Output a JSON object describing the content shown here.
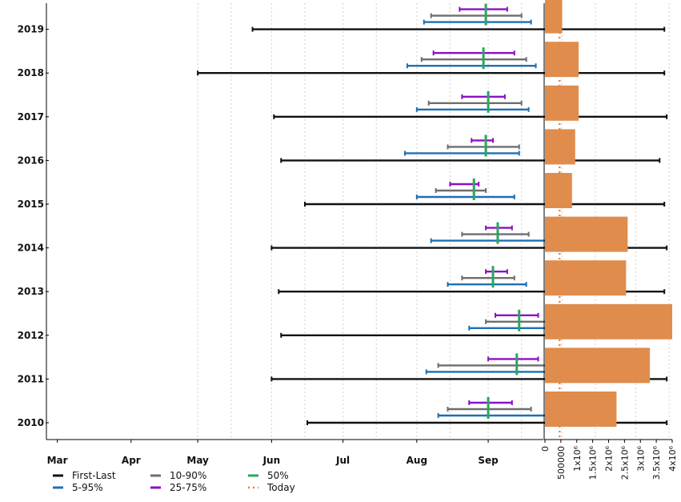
{
  "chart_data": [
    {
      "type": "range",
      "categories": [
        "2010",
        "2011",
        "2012",
        "2013",
        "2014",
        "2015",
        "2016",
        "2017",
        "2018",
        "2019"
      ],
      "x_ticks": [
        "Mar",
        "Apr",
        "May",
        "Jun",
        "Jul",
        "Aug",
        "Sep"
      ],
      "today": "Jul 31",
      "series": [
        {
          "name": "First-Last",
          "color": "#111111",
          "ranges": [
            [
              "Apr 16",
              "Sep 14"
            ],
            [
              "Apr 1",
              "Sep 14"
            ],
            [
              "Apr 5",
              "Sep 15"
            ],
            [
              "Apr 4",
              "Sep 13"
            ],
            [
              "Apr 1",
              "Sep 14"
            ],
            [
              "Apr 15",
              "Sep 13"
            ],
            [
              "Apr 5",
              "Sep 11"
            ],
            [
              "Apr 2",
              "Sep 14"
            ],
            [
              "Mar 1",
              "Sep 13"
            ],
            [
              "Mar 24",
              "Sep 13"
            ]
          ]
        },
        {
          "name": "5-95%",
          "color": "#1f6fb2",
          "ranges": [
            [
              "Jun 10",
              "Jul 26"
            ],
            [
              "Jun 5",
              "Aug 9"
            ],
            [
              "Jun 23",
              "Aug 7"
            ],
            [
              "Jun 14",
              "Jul 17"
            ],
            [
              "Jun 7",
              "Jul 26"
            ],
            [
              "Jun 1",
              "Jul 12"
            ],
            [
              "May 27",
              "Jul 14"
            ],
            [
              "Jun 1",
              "Jul 18"
            ],
            [
              "May 28",
              "Jul 21"
            ],
            [
              "Jun 4",
              "Jul 19"
            ]
          ]
        },
        {
          "name": "10-90%",
          "color": "#6e6e6e",
          "ranges": [
            [
              "Jun 14",
              "Jul 19"
            ],
            [
              "Jun 10",
              "Aug 1"
            ],
            [
              "Jun 30",
              "Jul 31"
            ],
            [
              "Jun 20",
              "Jul 12"
            ],
            [
              "Jun 20",
              "Jul 18"
            ],
            [
              "Jun 9",
              "Jun 30"
            ],
            [
              "Jun 14",
              "Jul 14"
            ],
            [
              "Jun 6",
              "Jul 15"
            ],
            [
              "Jun 3",
              "Jul 17"
            ],
            [
              "Jun 7",
              "Jul 15"
            ]
          ]
        },
        {
          "name": "25-75%",
          "color": "#8b10c4",
          "ranges": [
            [
              "Jun 23",
              "Jul 11"
            ],
            [
              "Jul 1",
              "Jul 22"
            ],
            [
              "Jul 4",
              "Jul 22"
            ],
            [
              "Jun 30",
              "Jul 9"
            ],
            [
              "Jun 30",
              "Jul 11"
            ],
            [
              "Jun 15",
              "Jun 27"
            ],
            [
              "Jun 24",
              "Jul 3"
            ],
            [
              "Jun 20",
              "Jul 8"
            ],
            [
              "Jun 8",
              "Jul 12"
            ],
            [
              "Jun 19",
              "Jul 9"
            ]
          ]
        },
        {
          "name": "50%",
          "color": "#2aa55e",
          "values": [
            "Jul 1",
            "Jul 13",
            "Jul 14",
            "Jul 3",
            "Jul 5",
            "Jun 25",
            "Jun 30",
            "Jul 1",
            "Jun 29",
            "Jun 30"
          ]
        }
      ],
      "legend": "bottom-left"
    },
    {
      "type": "bar",
      "orientation": "horizontal",
      "categories": [
        "2010",
        "2011",
        "2012",
        "2013",
        "2014",
        "2015",
        "2016",
        "2017",
        "2018",
        "2019"
      ],
      "values": [
        2250000,
        3300000,
        4000000,
        2550000,
        2600000,
        850000,
        950000,
        1060000,
        1060000,
        540000
      ],
      "xlim": [
        0,
        4000000
      ],
      "x_ticks": [
        "0",
        "500000",
        "1x10⁶",
        "1.5x10⁶",
        "2x10⁶",
        "2.5x10⁶",
        "3x10⁶",
        "3.5x10⁶",
        "4x10⁶"
      ],
      "color": "#e08c4c"
    }
  ]
}
